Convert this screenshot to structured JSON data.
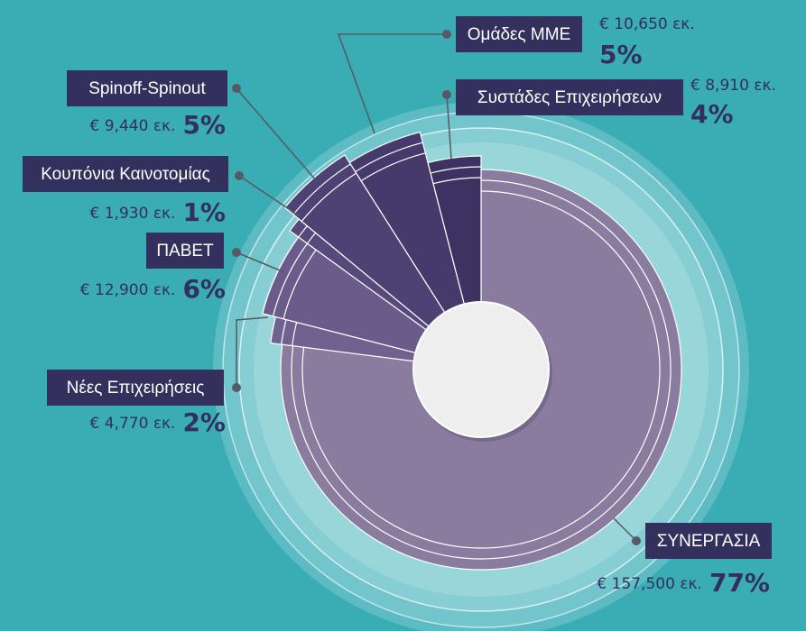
{
  "chart_data": {
    "type": "pie",
    "categories": [
      "ΣΥΝΕΡΓΑΣΙΑ",
      "Νέες Επιχειρήσεις",
      "ΠΑΒΕΤ",
      "Κουπόνια Καινοτομίας",
      "Spinoff-Spinout",
      "Ομάδες ΜΜΕ",
      "Συστάδες Επιχειρήσεων"
    ],
    "values": [
      77,
      2,
      6,
      1,
      5,
      5,
      4
    ],
    "value_labels": [
      "77%",
      "2%",
      "6%",
      "1%",
      "5%",
      "5%",
      "4%"
    ],
    "amount_labels": [
      "€ 157,500 εκ.",
      "€ 4,770 εκ.",
      "€ 12,900 εκ.",
      "€ 1,930 εκ.",
      "€ 9,440 εκ.",
      "€ 10,650 εκ.",
      "€ 8,910 εκ."
    ],
    "colors": [
      "#8a7c9f",
      "#6f6190",
      "#6a5b8b",
      "#56497c",
      "#4e4275",
      "#453a6b",
      "#3c3363"
    ]
  }
}
